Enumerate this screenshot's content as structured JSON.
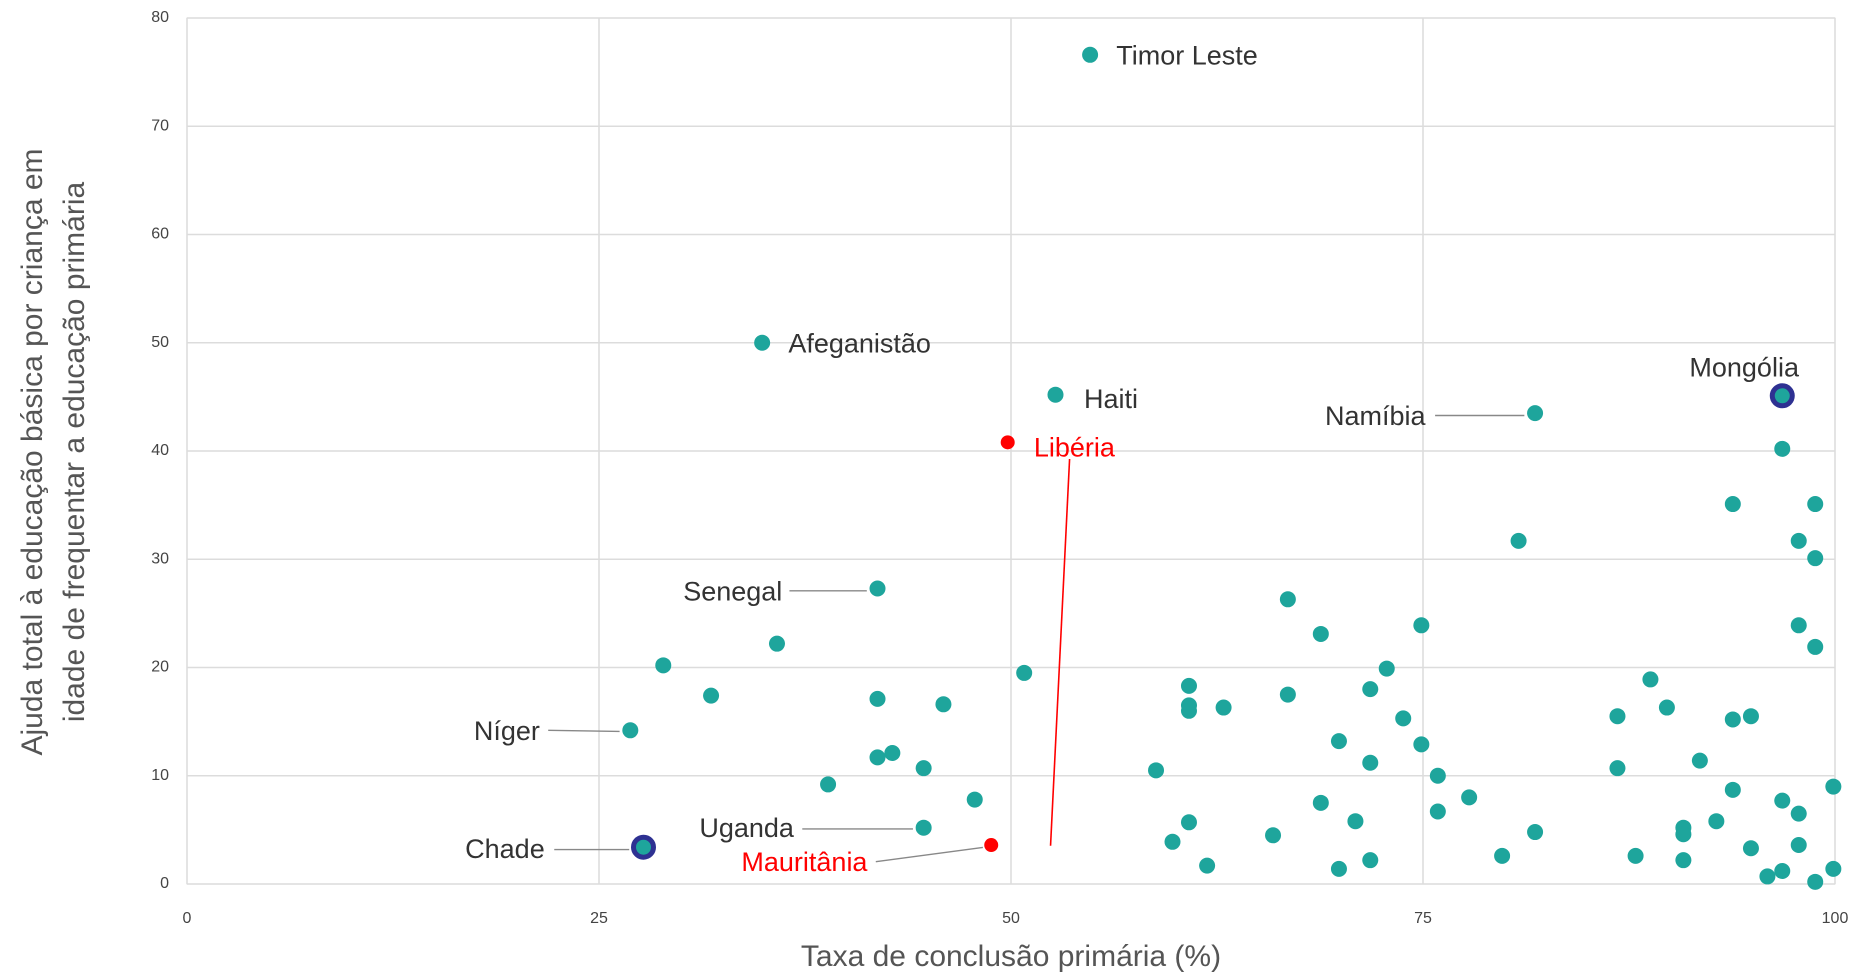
{
  "chart_data": {
    "type": "scatter",
    "xlabel": "Taxa de conclusão primária (%)",
    "ylabel": [
      "Ajuda total à educação básica por criança em",
      "idade de frequentar a educação primária"
    ],
    "xlim": [
      0,
      100
    ],
    "ylim": [
      0,
      80
    ],
    "xticks": [
      0,
      25,
      50,
      75,
      100
    ],
    "yticks": [
      0,
      10,
      20,
      30,
      40,
      50,
      60,
      70,
      80
    ],
    "grid": true,
    "series": [
      {
        "color": "#1ea59c",
        "x": [
          54.8,
          34.9,
          52.7,
          81.8,
          41.9,
          26.9,
          44.7,
          28.9,
          31.8,
          35.8,
          38.9,
          41.9,
          41.9,
          42.8,
          44.7,
          45.9,
          47.8,
          50.8,
          58.8,
          59.8,
          60.8,
          60.8,
          60.8,
          60.8,
          61.9,
          62.9,
          65.9,
          66.8,
          66.8,
          68.8,
          68.8,
          69.9,
          69.9,
          70.9,
          71.8,
          71.8,
          71.8,
          72.8,
          73.8,
          74.9,
          74.9,
          75.9,
          75.9,
          77.8,
          79.8,
          80.8,
          81.8,
          86.8,
          86.8,
          87.9,
          88.8,
          89.8,
          90.8,
          90.8,
          90.8,
          91.8,
          92.8,
          93.8,
          93.8,
          93.8,
          94.9,
          94.9,
          95.9,
          96.8,
          96.8,
          96.8,
          97.8,
          97.8,
          97.8,
          97.8,
          98.8,
          98.8,
          98.8,
          98.8,
          99.9,
          99.9
        ],
        "values": [
          76.6,
          50.0,
          45.2,
          43.5,
          27.3,
          14.2,
          5.2,
          20.2,
          17.4,
          22.2,
          9.2,
          17.1,
          11.7,
          12.1,
          10.7,
          16.6,
          7.8,
          19.5,
          10.5,
          3.9,
          5.7,
          18.3,
          16.5,
          16.0,
          1.7,
          16.3,
          4.5,
          26.3,
          17.5,
          23.1,
          7.5,
          13.2,
          1.4,
          5.8,
          18.0,
          11.2,
          2.2,
          19.9,
          15.3,
          23.9,
          12.9,
          10.0,
          6.7,
          8.0,
          2.6,
          31.7,
          4.8,
          15.5,
          10.7,
          2.6,
          18.9,
          16.3,
          5.2,
          4.6,
          2.2,
          11.4,
          5.8,
          35.1,
          15.2,
          8.7,
          15.5,
          3.3,
          0.7,
          40.2,
          7.7,
          1.2,
          31.7,
          23.9,
          6.5,
          3.6,
          35.1,
          30.1,
          21.9,
          0.2,
          9.0,
          1.4
        ],
        "labels": [
          "Timor Leste",
          "Afeganistão",
          "Haiti",
          "Namíbia",
          "Senegal",
          "Níger",
          "Uganda",
          null,
          null,
          null,
          null,
          null,
          null,
          null,
          null,
          null,
          null,
          null,
          null,
          null,
          null,
          null,
          null,
          null,
          null,
          null,
          null,
          null,
          null,
          null,
          null,
          null,
          null,
          null,
          null,
          null,
          null,
          null,
          null,
          null,
          null,
          null,
          null,
          null,
          null,
          null,
          null,
          null,
          null,
          null,
          null,
          null,
          null,
          null,
          null,
          null,
          null,
          null,
          null,
          null,
          null,
          null,
          null,
          null,
          null,
          null,
          null,
          null,
          null,
          null,
          null,
          null,
          null,
          null,
          null,
          null
        ]
      },
      {
        "color": "#ff0000",
        "x": [
          49.8,
          48.8
        ],
        "values": [
          40.8,
          3.6
        ],
        "labels": [
          "Libéria",
          "Mauritânia"
        ]
      },
      {
        "color": "#2e3192",
        "x": [
          96.8,
          27.7
        ],
        "values": [
          45.1,
          3.4
        ],
        "labels": [
          "Mongólia",
          "Chade"
        ]
      }
    ]
  }
}
